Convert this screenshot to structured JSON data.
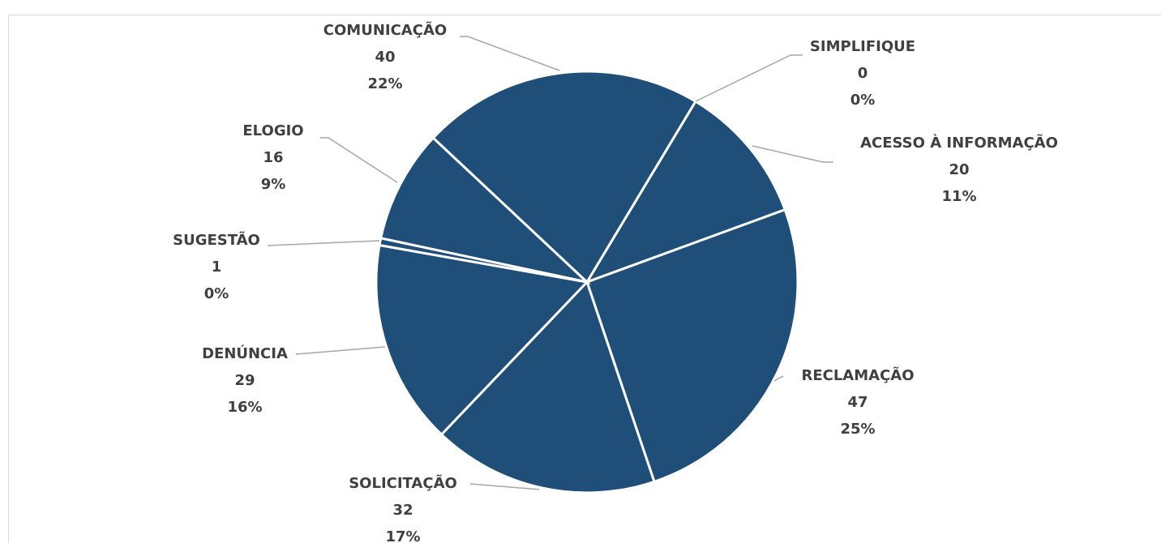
{
  "chart_data": {
    "type": "pie",
    "categories": [
      "SIMPLIFIQUE",
      "ACESSO À INFORMAÇÃO",
      "RECLAMAÇÃO",
      "SOLICITAÇÃO",
      "DENÚNCIA",
      "SUGESTÃO",
      "ELOGIO",
      "COMUNICAÇÃO"
    ],
    "values": [
      0,
      20,
      47,
      32,
      29,
      1,
      16,
      40
    ],
    "percent_labels": [
      "0%",
      "11%",
      "25%",
      "17%",
      "16%",
      "0%",
      "9%",
      "22%"
    ],
    "color": "#1f4e79"
  }
}
